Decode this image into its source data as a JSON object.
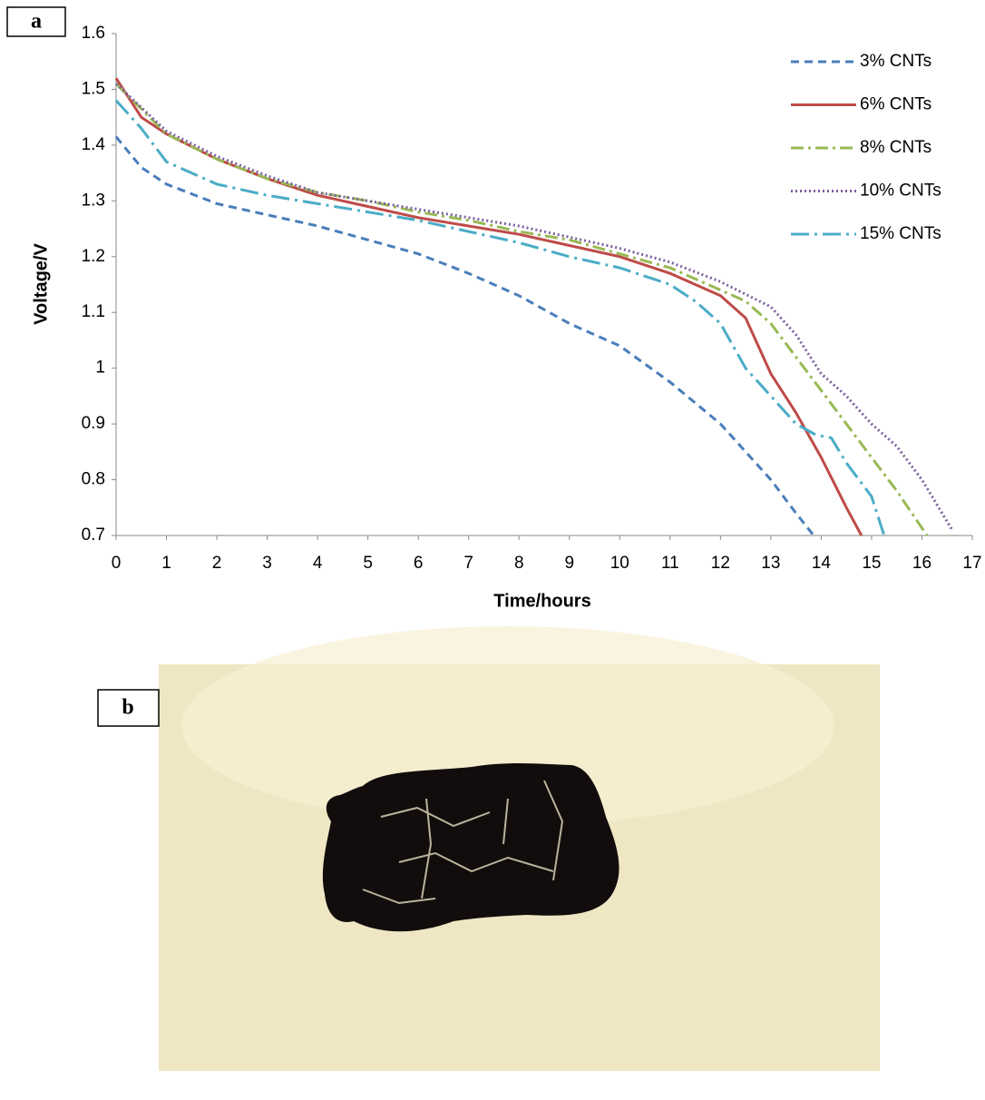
{
  "panel_labels": [
    "a",
    "b"
  ],
  "chart_data": {
    "type": "line",
    "x_label": "Time/hours",
    "y_label": "Voltage/V",
    "xlim": [
      0,
      17
    ],
    "xticks": [
      0,
      1,
      2,
      3,
      4,
      5,
      6,
      7,
      8,
      9,
      10,
      11,
      12,
      13,
      14,
      15,
      16,
      17
    ],
    "ylim": [
      0.7,
      1.6
    ],
    "yticks": [
      0.7,
      0.8,
      0.9,
      1,
      1.1,
      1.2,
      1.3,
      1.4,
      1.5,
      1.6
    ],
    "legend": "top-right",
    "series": [
      {
        "name": "3% CNTs",
        "color": "#4a7ebb",
        "style": "dashed",
        "x": [
          0,
          0.5,
          1,
          2,
          3,
          4,
          5,
          6,
          7,
          8,
          9,
          10,
          11,
          12,
          13,
          13.5,
          13.85
        ],
        "values": [
          1.415,
          1.36,
          1.33,
          1.295,
          1.275,
          1.255,
          1.23,
          1.205,
          1.17,
          1.13,
          1.08,
          1.04,
          0.975,
          0.9,
          0.8,
          0.74,
          0.7
        ]
      },
      {
        "name": "6% CNTs",
        "color": "#be4b48",
        "style": "solid",
        "x": [
          0,
          0.5,
          1,
          2,
          3,
          4,
          5,
          6,
          7,
          8,
          9,
          10,
          11,
          12,
          12.5,
          13,
          13.5,
          14,
          14.5,
          14.8
        ],
        "values": [
          1.52,
          1.45,
          1.42,
          1.375,
          1.34,
          1.31,
          1.29,
          1.27,
          1.255,
          1.24,
          1.22,
          1.2,
          1.17,
          1.13,
          1.09,
          0.99,
          0.92,
          0.84,
          0.75,
          0.7
        ]
      },
      {
        "name": "8% CNTs",
        "color": "#98b954",
        "style": "dashdot",
        "x": [
          0,
          1,
          2,
          3,
          4,
          5,
          6,
          7,
          8,
          9,
          10,
          11,
          12,
          12.5,
          13,
          13.5,
          14,
          14.5,
          15,
          15.5,
          16.1
        ],
        "values": [
          1.51,
          1.42,
          1.375,
          1.34,
          1.315,
          1.3,
          1.28,
          1.265,
          1.245,
          1.23,
          1.205,
          1.18,
          1.14,
          1.12,
          1.08,
          1.02,
          0.96,
          0.9,
          0.84,
          0.78,
          0.7
        ]
      },
      {
        "name": "10% CNTs",
        "color": "#7d60a0",
        "style": "dotted",
        "x": [
          0,
          1,
          2,
          3,
          4,
          5,
          6,
          7,
          8,
          9,
          10,
          11,
          12,
          13,
          13.5,
          14,
          14.5,
          15,
          15.5,
          16,
          16.6
        ],
        "values": [
          1.51,
          1.425,
          1.38,
          1.345,
          1.315,
          1.3,
          1.285,
          1.27,
          1.255,
          1.235,
          1.215,
          1.19,
          1.155,
          1.11,
          1.06,
          0.99,
          0.95,
          0.9,
          0.86,
          0.8,
          0.71
        ]
      },
      {
        "name": "15% CNTs",
        "color": "#4bacc6",
        "style": "longdashdot",
        "x": [
          0,
          0.5,
          1,
          2,
          3,
          4,
          5,
          6,
          7,
          8,
          9,
          10,
          11,
          11.5,
          12,
          12.5,
          13,
          13.5,
          13.9,
          14.2,
          14.5,
          15,
          15.25
        ],
        "values": [
          1.48,
          1.43,
          1.37,
          1.33,
          1.31,
          1.295,
          1.28,
          1.265,
          1.245,
          1.225,
          1.2,
          1.18,
          1.15,
          1.12,
          1.08,
          1.0,
          0.95,
          0.9,
          0.88,
          0.875,
          0.83,
          0.77,
          0.7
        ]
      }
    ]
  }
}
